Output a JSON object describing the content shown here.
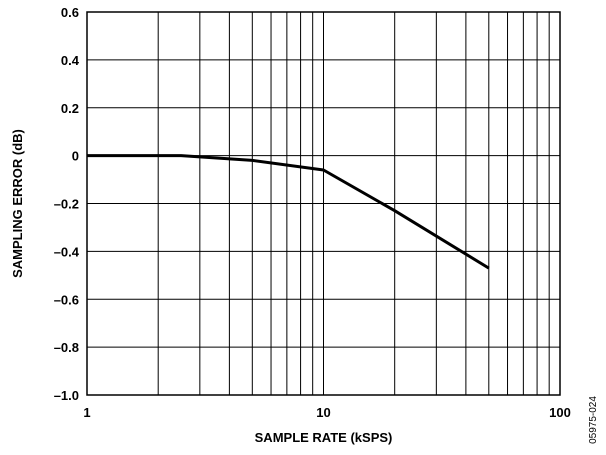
{
  "chart_data": {
    "type": "line",
    "title": "",
    "xlabel": "SAMPLE RATE (kSPS)",
    "ylabel": "SAMPLING ERROR (dB)",
    "x_scale": "log",
    "xlim": [
      1,
      100
    ],
    "ylim": [
      -1.0,
      0.6
    ],
    "x_ticks": [
      {
        "value": 1,
        "label": "1"
      },
      {
        "value": 10,
        "label": "10"
      },
      {
        "value": 100,
        "label": "100"
      }
    ],
    "y_ticks": [
      {
        "value": 0.6,
        "label": "0.6"
      },
      {
        "value": 0.4,
        "label": "0.4"
      },
      {
        "value": 0.2,
        "label": "0.2"
      },
      {
        "value": 0,
        "label": "0"
      },
      {
        "value": -0.2,
        "label": "-0.2"
      },
      {
        "value": -0.4,
        "label": "-0.4"
      },
      {
        "value": -0.6,
        "label": "-0.6"
      },
      {
        "value": -0.8,
        "label": "-0.8"
      },
      {
        "value": -1.0,
        "label": "-1.0"
      }
    ],
    "grid": true,
    "series": [
      {
        "x": [
          1,
          2.5,
          5,
          10,
          20,
          50
        ],
        "y": [
          0,
          0,
          -0.02,
          -0.06,
          -0.23,
          -0.47
        ]
      }
    ]
  },
  "figure_code": "05975-024",
  "colors": {
    "line": "#000000",
    "grid": "#000000",
    "background": "#ffffff"
  }
}
